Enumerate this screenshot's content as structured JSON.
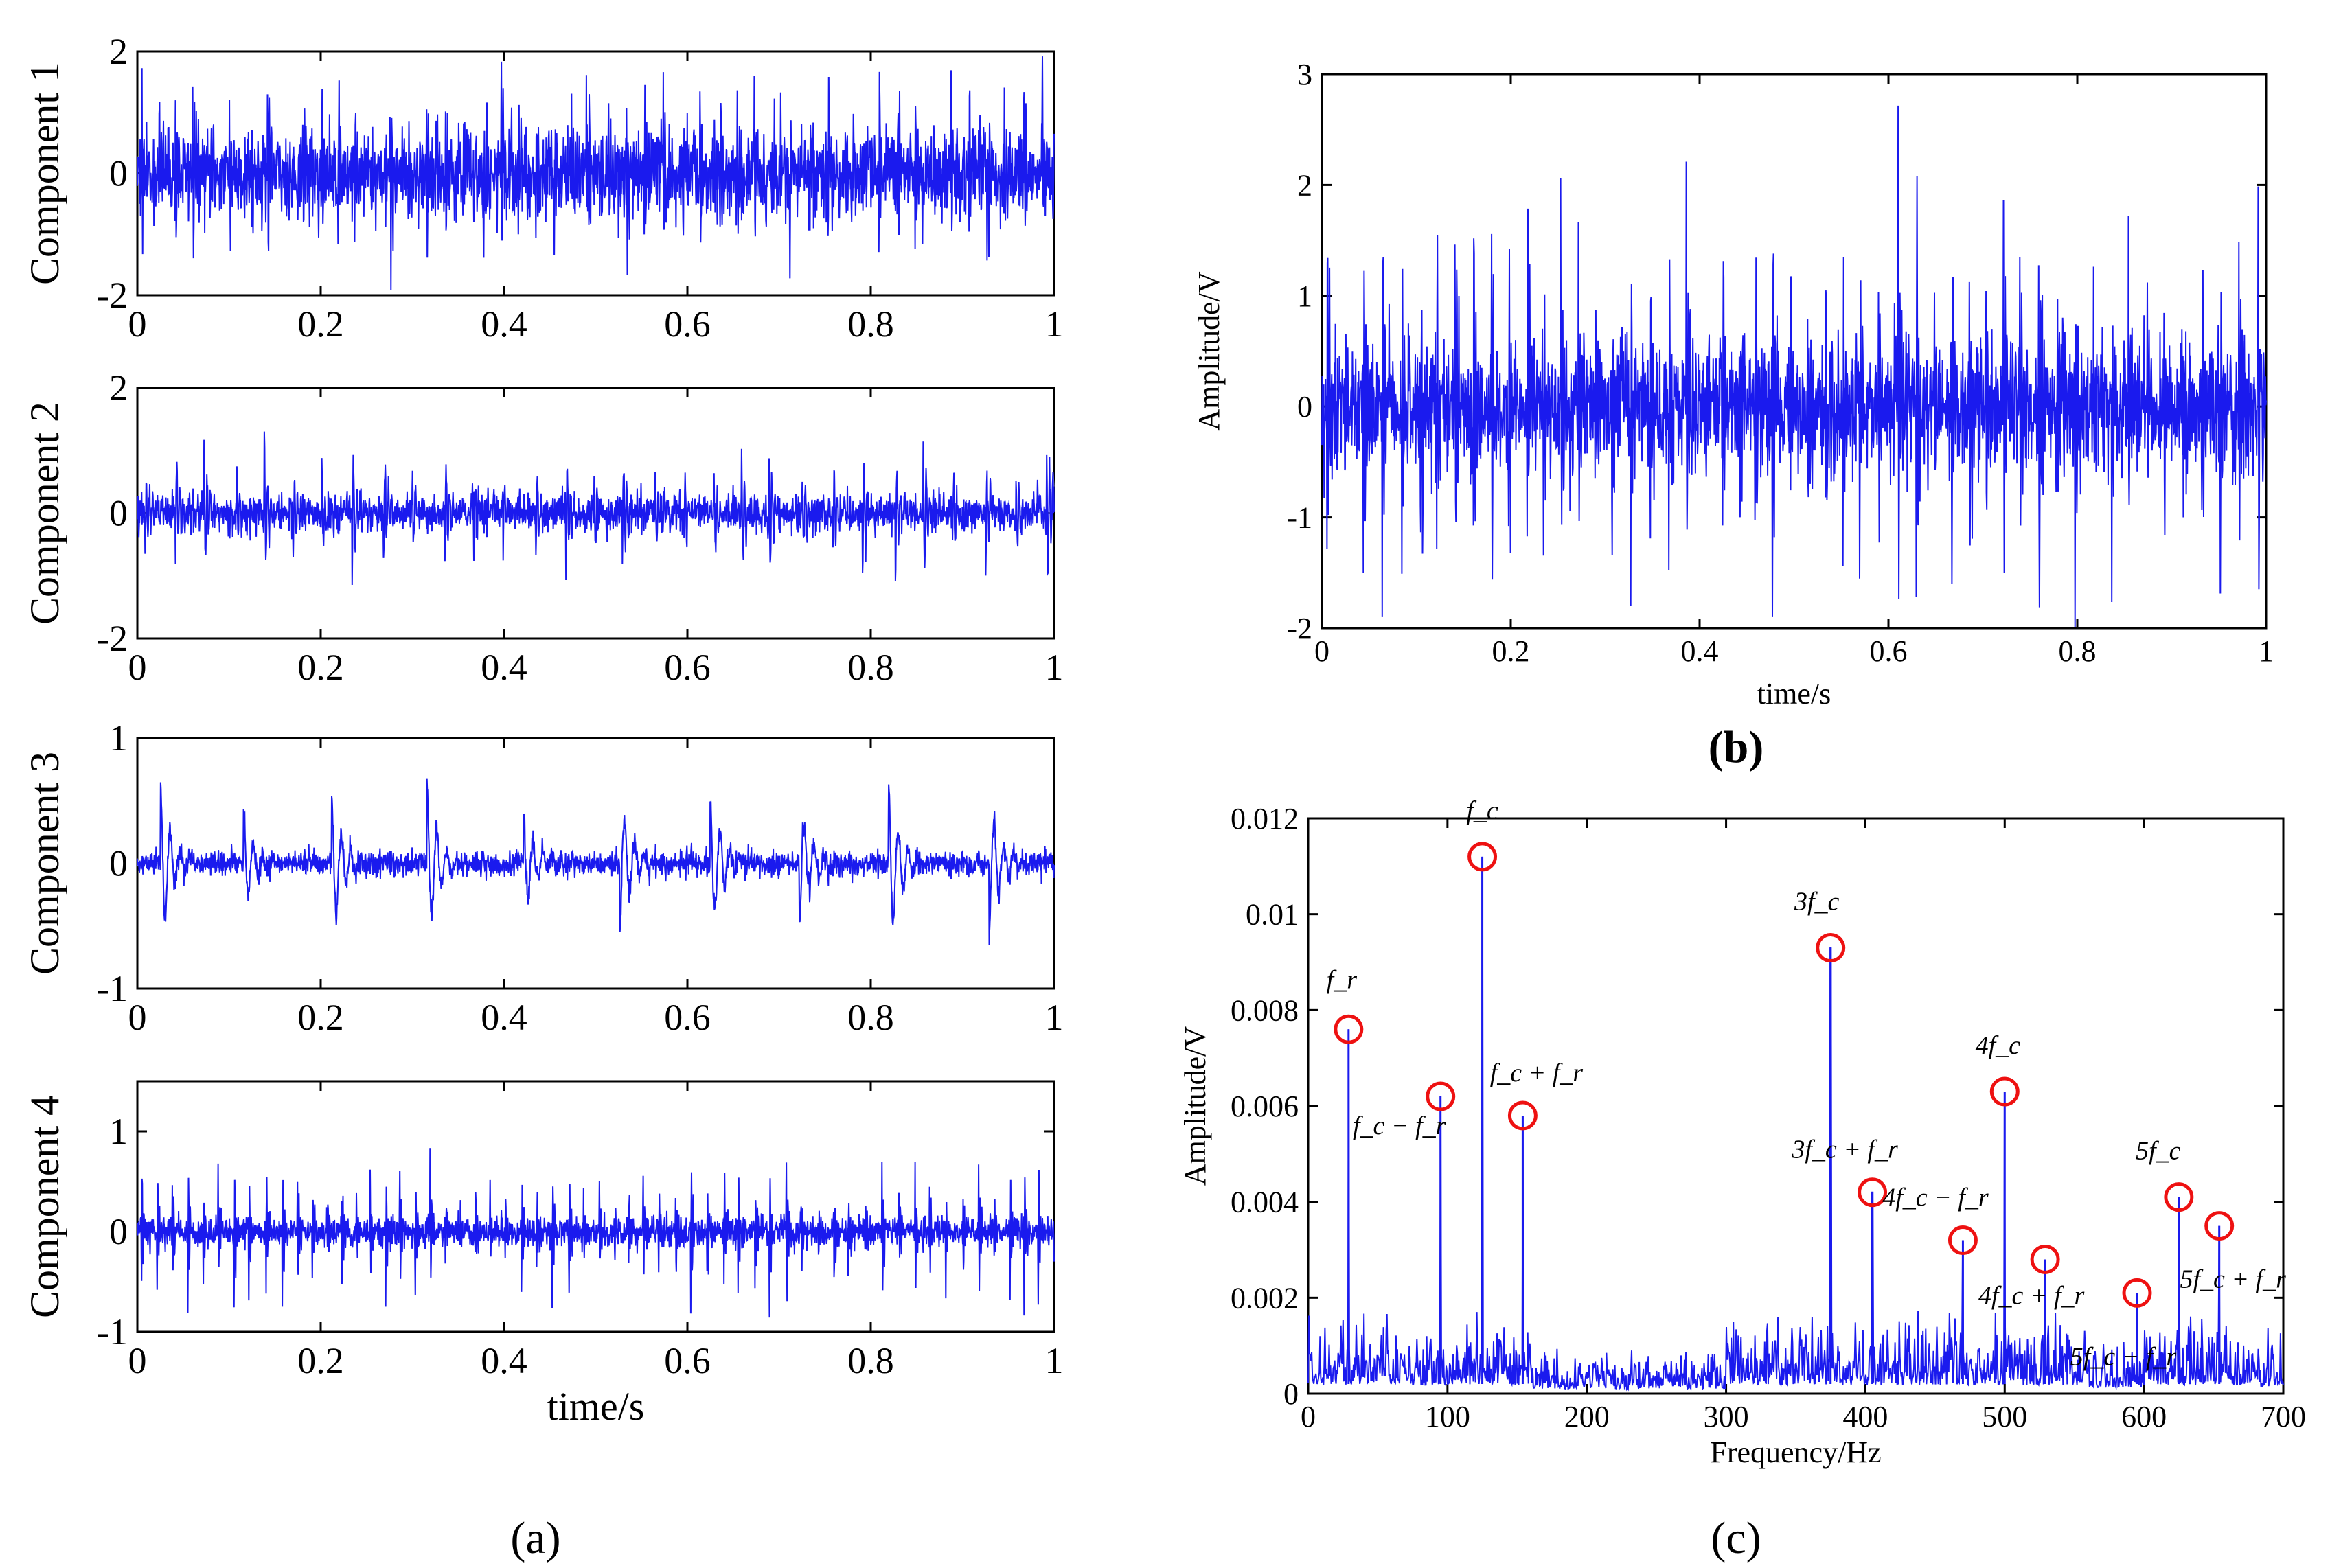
{
  "figure": {
    "panel_a": "(a)",
    "panel_b": "(b)",
    "panel_c": "(c)"
  },
  "chart_data": [
    {
      "id": "a1",
      "type": "line",
      "ylabel": "Component 1",
      "xlabel": "",
      "xlim": [
        0,
        1
      ],
      "ylim": [
        -2,
        2
      ],
      "xticks": [
        "0",
        "0.2",
        "0.4",
        "0.6",
        "0.8",
        "1"
      ],
      "yticks": [
        "-2",
        "0",
        "2"
      ],
      "impulse_period_s": 0.02,
      "typical_peak": 1.6,
      "noise_std": 0.35,
      "line_color": "#1a1aee"
    },
    {
      "id": "a2",
      "type": "line",
      "ylabel": "Component 2",
      "xlabel": "",
      "xlim": [
        0,
        1
      ],
      "ylim": [
        -2,
        2
      ],
      "xticks": [
        "0",
        "0.2",
        "0.4",
        "0.6",
        "0.8",
        "1"
      ],
      "yticks": [
        "-2",
        "0",
        "2"
      ],
      "impulse_period_s": 0.033,
      "typical_peak": 1.2,
      "noise_std": 0.15,
      "line_color": "#1a1aee"
    },
    {
      "id": "a3",
      "type": "line",
      "ylabel": "Component 3",
      "xlabel": "",
      "xlim": [
        0,
        1
      ],
      "ylim": [
        -1,
        1
      ],
      "xticks": [
        "0",
        "0.2",
        "0.4",
        "0.6",
        "0.8",
        "1"
      ],
      "yticks": [
        "-1",
        "0",
        "1"
      ],
      "impulse_period_s": 0.1,
      "typical_peak": 0.7,
      "noise_std": 0.05,
      "line_color": "#1a1aee"
    },
    {
      "id": "a4",
      "type": "line",
      "ylabel": "Component 4",
      "xlabel": "time/s",
      "xlim": [
        0,
        1
      ],
      "ylim": [
        -1,
        1.5
      ],
      "xticks": [
        "0",
        "0.2",
        "0.4",
        "0.6",
        "0.8",
        "1"
      ],
      "yticks": [
        "-1",
        "0",
        "1"
      ],
      "impulse_period_s": 0.017,
      "typical_peak": 0.8,
      "noise_std": 0.07,
      "line_color": "#1a1aee"
    },
    {
      "id": "b",
      "type": "line",
      "ylabel": "Amplitude/V",
      "xlabel": "time/s",
      "xlim": [
        0,
        1
      ],
      "ylim": [
        -2,
        3
      ],
      "xticks": [
        "0",
        "0.2",
        "0.4",
        "0.6",
        "0.8",
        "1"
      ],
      "yticks": [
        "-2",
        "-1",
        "0",
        "1",
        "2",
        "3"
      ],
      "impulse_period_s": 0.019,
      "typical_peak": 2.2,
      "noise_std": 0.28,
      "line_color": "#1a1aee"
    },
    {
      "id": "c",
      "type": "line",
      "ylabel": "Amplitude/V",
      "xlabel": "Frequency/Hz",
      "xlim": [
        0,
        700
      ],
      "ylim": [
        0,
        0.012
      ],
      "xticks": [
        "0",
        "100",
        "200",
        "300",
        "400",
        "500",
        "600",
        "700"
      ],
      "yticks": [
        "0",
        "0.002",
        "0.004",
        "0.006",
        "0.008",
        "0.01",
        "0.012"
      ],
      "noise_floor": 0.0012,
      "line_color": "#1a1aee",
      "marker_color": "#ee1111",
      "peaks": [
        {
          "label": "f_r",
          "x": 29,
          "y": 0.0076
        },
        {
          "label": "f_c − f_r",
          "x": 95,
          "y": 0.0062
        },
        {
          "label": "f_c",
          "x": 125,
          "y": 0.0112
        },
        {
          "label": "f_c + f_r",
          "x": 154,
          "y": 0.0058
        },
        {
          "label": "3f_c",
          "x": 375,
          "y": 0.0093
        },
        {
          "label": "3f_c + f_r",
          "x": 405,
          "y": 0.0042
        },
        {
          "label": "4f_c − f_r",
          "x": 470,
          "y": 0.0032
        },
        {
          "label": "4f_c",
          "x": 500,
          "y": 0.0063
        },
        {
          "label": "4f_c + f_r",
          "x": 529,
          "y": 0.0028
        },
        {
          "label": "5f_c − f_r",
          "x": 595,
          "y": 0.0021
        },
        {
          "label": "5f_c",
          "x": 625,
          "y": 0.0041
        },
        {
          "label": "5f_c + f_r",
          "x": 654,
          "y": 0.0035
        }
      ]
    }
  ]
}
